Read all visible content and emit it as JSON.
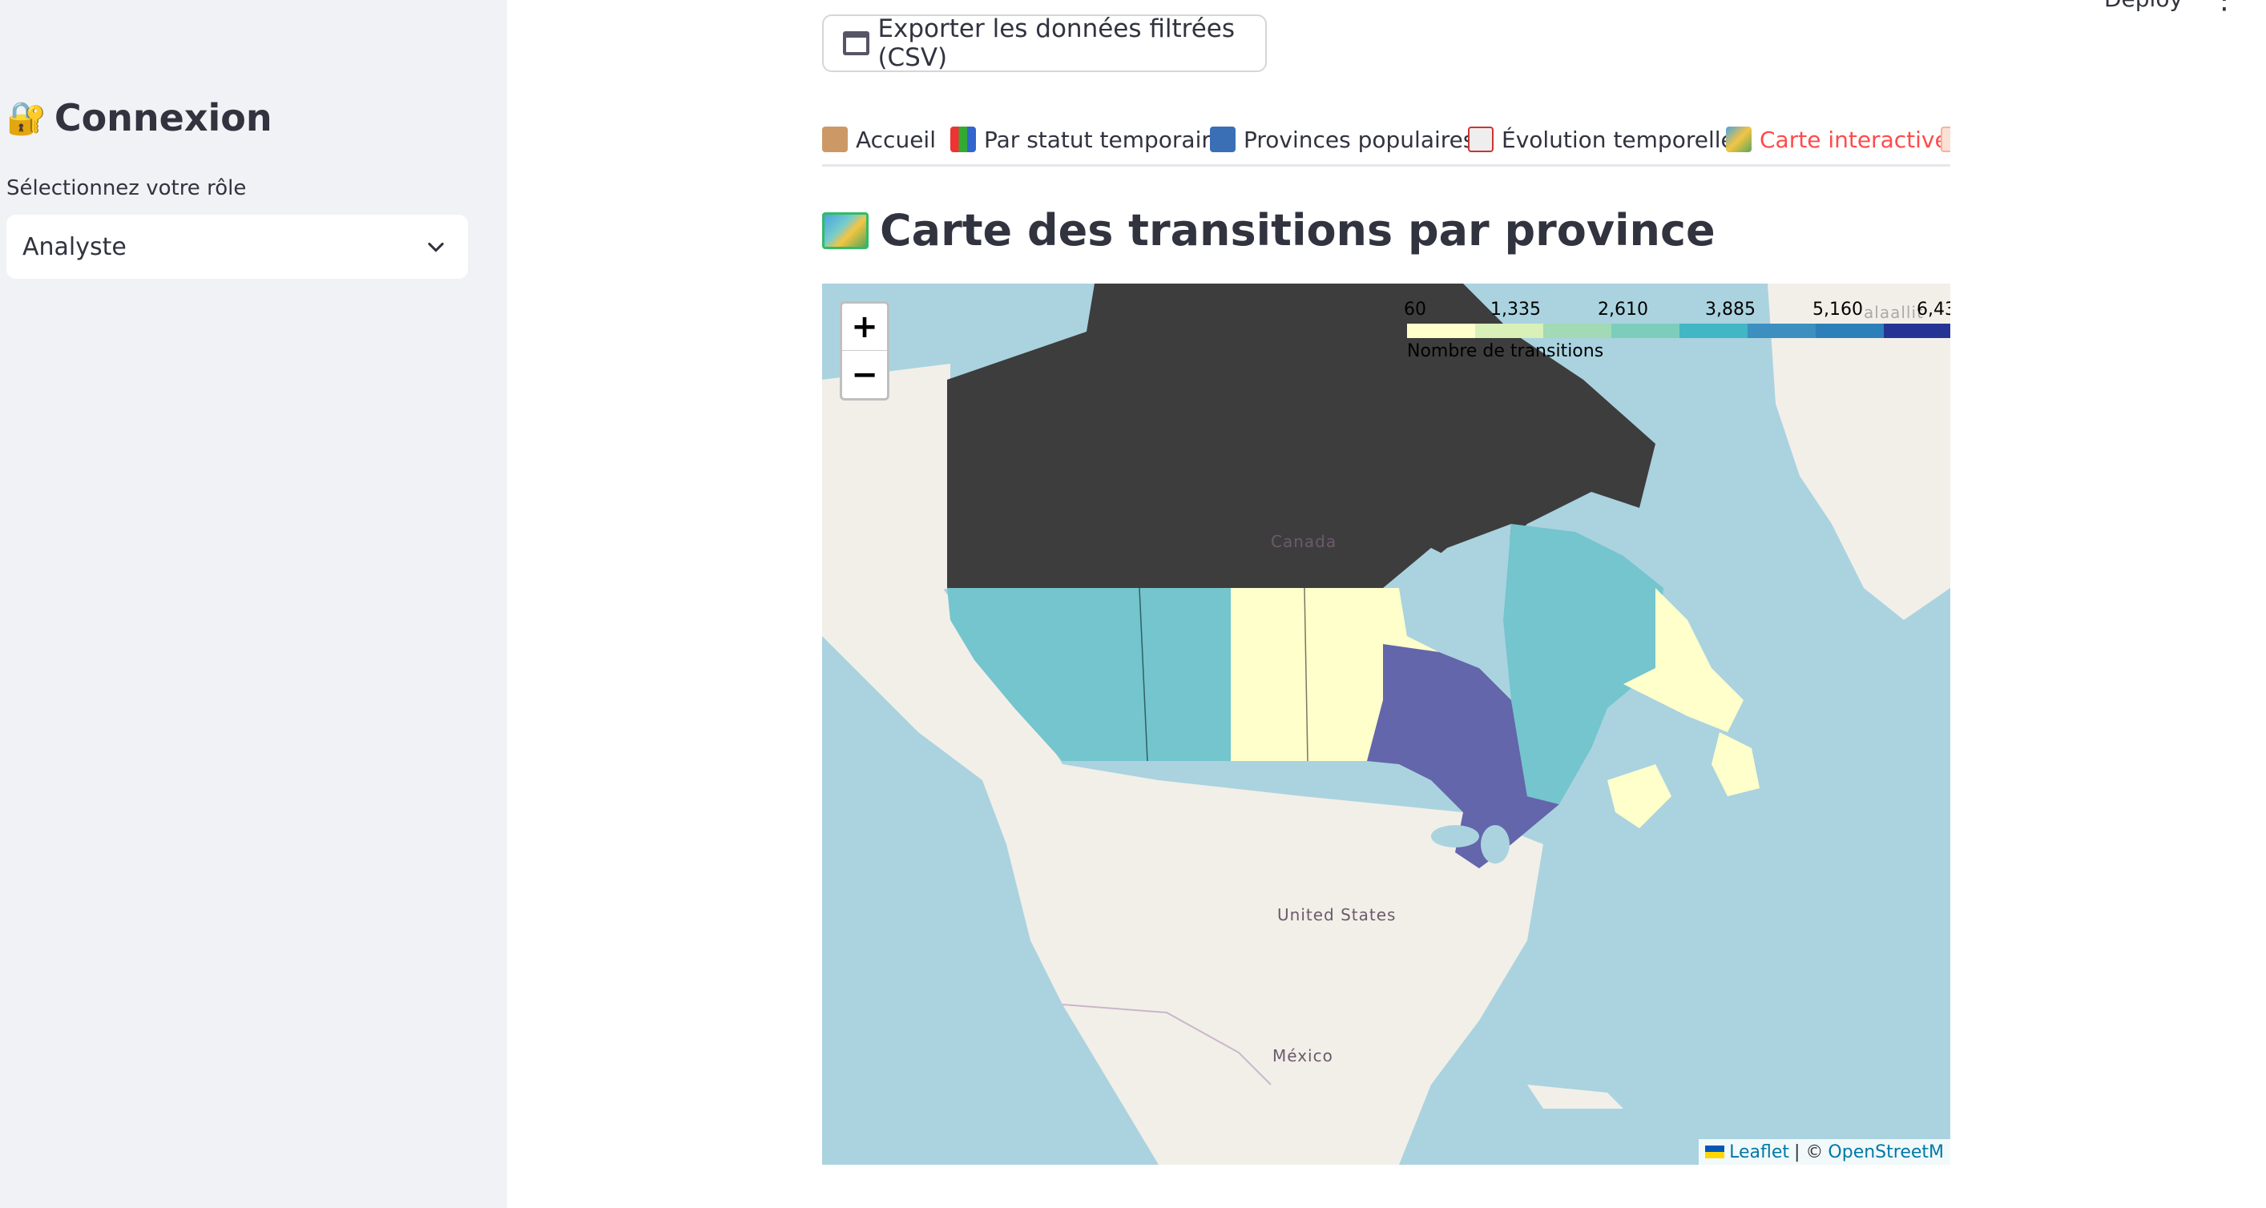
{
  "sidebar": {
    "title": "Connexion",
    "title_icon": "lock-icon",
    "role_label": "Sélectionnez votre rôle",
    "role_value": "Analyste"
  },
  "topbar": {
    "deploy_label": "Deploy",
    "more_label": "⋮"
  },
  "export_button": {
    "label": "Exporter les données filtrées (CSV)"
  },
  "tabs": [
    {
      "label": "Accueil",
      "icon": "house-icon"
    },
    {
      "label": "Par statut temporaire",
      "icon": "bar-chart-icon"
    },
    {
      "label": "Provinces populaires",
      "icon": "city-icon"
    },
    {
      "label": "Évolution temporelle",
      "icon": "line-chart-icon"
    },
    {
      "label": "Carte interactive",
      "icon": "map-icon",
      "active": true
    }
  ],
  "heading": "Carte des transitions par province",
  "map": {
    "zoom_in": "+",
    "zoom_out": "−",
    "legend": {
      "ticks": [
        "60",
        "1,335",
        "2,610",
        "3,885",
        "5,160",
        "6,43"
      ],
      "caption": "Nombre de transitions",
      "colors": [
        "#ffffcc",
        "#d9f0b9",
        "#a1dab4",
        "#7ccdbb",
        "#41b6c4",
        "#3d8fc0",
        "#2c7fb8",
        "#253494"
      ]
    },
    "labels": {
      "canada": "Canada",
      "us": "United States",
      "mexico": "México",
      "greenland_fragment": "alaallit"
    },
    "attribution": {
      "leaflet": "Leaflet",
      "separator": " | © ",
      "osm": "OpenStreetM"
    },
    "colors": {
      "territories": "#3d3d3d",
      "bc_alberta": "#74c5cd",
      "prairies": "#ffffcc",
      "ontario": "#6366ab",
      "quebec": "#74c5cd",
      "atlantic": "#ffffcc",
      "land": "#f2efe9",
      "water": "#aad3df"
    }
  }
}
